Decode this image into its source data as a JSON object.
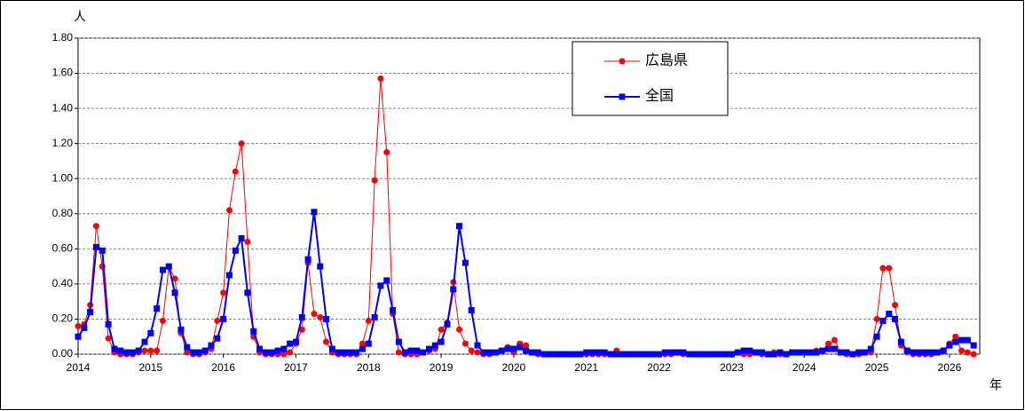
{
  "chart_data": {
    "type": "line",
    "y_label": "人",
    "x_label": "年",
    "categories": [
      "2014",
      null,
      null,
      null,
      null,
      null,
      null,
      null,
      null,
      null,
      null,
      null,
      "2015",
      null,
      null,
      null,
      null,
      null,
      null,
      null,
      null,
      null,
      null,
      null,
      "2016",
      null,
      null,
      null,
      null,
      null,
      null,
      null,
      null,
      null,
      null,
      null,
      "2017",
      null,
      null,
      null,
      null,
      null,
      null,
      null,
      null,
      null,
      null,
      null,
      "2018",
      null,
      null,
      null,
      null,
      null,
      null,
      null,
      null,
      null,
      null,
      null,
      "2019",
      null,
      null,
      null,
      null,
      null,
      null,
      null,
      null,
      null,
      null,
      null,
      "2020",
      null,
      null,
      null,
      null,
      null,
      null,
      null,
      null,
      null,
      null,
      null,
      "2021",
      null,
      null,
      null,
      null,
      null,
      null,
      null,
      null,
      null,
      null,
      null,
      "2022",
      null,
      null,
      null,
      null,
      null,
      null,
      null,
      null,
      null,
      null,
      null,
      "2023",
      null,
      null,
      null,
      null,
      null,
      null,
      null,
      null,
      null,
      null,
      null,
      "2024",
      null,
      null,
      null,
      null,
      null,
      null,
      null,
      null,
      null,
      null,
      null,
      "2025",
      null,
      null,
      null,
      null,
      null,
      null,
      null,
      null,
      null,
      null,
      null,
      "2026",
      null,
      null,
      null,
      null
    ],
    "series": [
      {
        "name": "広島県",
        "color": "#ff0000",
        "marker": "circle",
        "values": [
          0.16,
          0.17,
          0.28,
          0.73,
          0.5,
          0.09,
          0.01,
          0,
          0,
          0,
          0.01,
          0.02,
          0.02,
          0.02,
          0.19,
          0.5,
          0.43,
          0.12,
          0.01,
          0,
          0,
          0.01,
          0.03,
          0.19,
          0.35,
          0.82,
          1.04,
          1.2,
          0.64,
          0.1,
          0.01,
          0,
          0,
          0,
          0,
          0.01,
          0.06,
          0.14,
          0.52,
          0.23,
          0.21,
          0.07,
          0.01,
          0,
          0,
          0,
          0,
          0.06,
          0.19,
          0.99,
          1.57,
          1.15,
          0.23,
          0.01,
          0,
          0,
          0,
          0.01,
          0.02,
          0.03,
          0.14,
          0.18,
          0.41,
          0.14,
          0.06,
          0.02,
          0.01,
          0,
          0,
          0.01,
          0.02,
          0.04,
          0.01,
          0.06,
          0.05,
          0.01,
          0,
          0,
          0,
          0,
          0,
          0,
          0,
          0,
          0,
          0,
          0,
          0,
          0,
          0.02,
          0,
          0,
          0,
          0,
          0,
          0,
          0,
          0,
          0,
          0.01,
          0,
          0,
          0,
          0,
          0,
          0,
          0,
          0,
          0,
          0.01,
          0,
          0,
          0.01,
          0,
          0,
          0.01,
          0,
          0,
          0.01,
          0.01,
          0.01,
          0.01,
          0.02,
          0.02,
          0.06,
          0.08,
          0.01,
          0,
          0,
          0,
          0.01,
          0.01,
          0.2,
          0.49,
          0.49,
          0.28,
          0.05,
          0.01,
          0,
          0,
          0,
          0,
          0.01,
          0.02,
          0.06,
          0.1,
          0.02,
          0.01,
          0
        ]
      },
      {
        "name": "全国",
        "color": "#0000ff",
        "marker": "square",
        "values": [
          0.1,
          0.15,
          0.24,
          0.61,
          0.59,
          0.17,
          0.03,
          0.02,
          0.01,
          0.01,
          0.02,
          0.07,
          0.12,
          0.26,
          0.48,
          0.5,
          0.35,
          0.14,
          0.04,
          0.01,
          0.01,
          0.02,
          0.05,
          0.09,
          0.2,
          0.45,
          0.59,
          0.66,
          0.35,
          0.13,
          0.03,
          0.01,
          0.01,
          0.02,
          0.03,
          0.06,
          0.07,
          0.21,
          0.54,
          0.81,
          0.5,
          0.2,
          0.03,
          0.01,
          0.01,
          0.01,
          0.01,
          0.03,
          0.06,
          0.21,
          0.39,
          0.42,
          0.25,
          0.07,
          0.01,
          0.02,
          0.02,
          0.01,
          0.03,
          0.05,
          0.07,
          0.17,
          0.37,
          0.73,
          0.52,
          0.25,
          0.05,
          0.01,
          0.01,
          0.01,
          0.02,
          0.03,
          0.03,
          0.04,
          0.02,
          0.01,
          0.01,
          0,
          0,
          0,
          0,
          0,
          0,
          0,
          0.01,
          0.01,
          0.01,
          0.01,
          0,
          0,
          0,
          0,
          0,
          0,
          0,
          0,
          0,
          0.01,
          0.01,
          0.01,
          0.01,
          0,
          0,
          0,
          0,
          0,
          0,
          0,
          0,
          0.01,
          0.02,
          0.02,
          0.01,
          0.01,
          0,
          0,
          0.01,
          0,
          0.01,
          0.01,
          0.01,
          0.01,
          0.01,
          0.02,
          0.03,
          0.03,
          0.01,
          0.01,
          0,
          0.01,
          0.01,
          0.03,
          0.1,
          0.19,
          0.23,
          0.2,
          0.07,
          0.02,
          0.01,
          0.01,
          0.01,
          0.01,
          0.01,
          0.02,
          0.05,
          0.07,
          0.08,
          0.08,
          0.05
        ]
      }
    ],
    "ylim": [
      0,
      1.8
    ],
    "yticks": [
      {
        "value": 0,
        "label": "0.00"
      },
      {
        "value": 0.2,
        "label": "0.20"
      },
      {
        "value": 0.4,
        "label": "0.40"
      },
      {
        "value": 0.6,
        "label": "0.60"
      },
      {
        "value": 0.8,
        "label": "0.80"
      },
      {
        "value": 1.0,
        "label": "1.00"
      },
      {
        "value": 1.2,
        "label": "1.20"
      },
      {
        "value": 1.4,
        "label": "1.40"
      },
      {
        "value": 1.6,
        "label": "1.60"
      },
      {
        "value": 1.8,
        "label": "1.80"
      }
    ],
    "grid": true,
    "legend": "top-right"
  }
}
